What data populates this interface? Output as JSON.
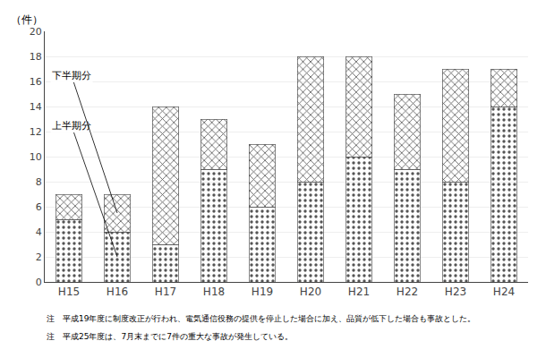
{
  "chart_data": {
    "type": "bar",
    "stacked": true,
    "categories": [
      "H15",
      "H16",
      "H17",
      "H18",
      "H19",
      "H20",
      "H21",
      "H22",
      "H23",
      "H24"
    ],
    "series": [
      {
        "name": "上半期分",
        "color": "#ffffff",
        "values": [
          5,
          4,
          3,
          9,
          6,
          8,
          10,
          9,
          8,
          14
        ]
      },
      {
        "name": "下半期分",
        "color": "#d0d0d0",
        "values": [
          2,
          3,
          11,
          4,
          5,
          10,
          8,
          6,
          9,
          3
        ]
      }
    ],
    "ylim": [
      0,
      20
    ],
    "yticks": [
      0,
      2,
      4,
      6,
      8,
      10,
      12,
      14,
      16,
      18,
      20
    ],
    "ylabel": "（件）",
    "grid": true,
    "annotations": [
      "注　平成19年度に制度改正が行われ、電気通信役務の提供を停止した場合に加え、品質が低下した場合も事故とした。",
      "注　平成25年度は、7月末までに7件の重大な事故が発生している。"
    ]
  }
}
